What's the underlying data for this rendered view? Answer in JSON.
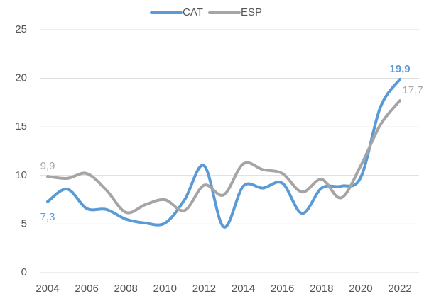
{
  "chart_data": {
    "type": "line",
    "x": [
      2004,
      2005,
      2006,
      2007,
      2008,
      2009,
      2010,
      2011,
      2012,
      2013,
      2014,
      2015,
      2016,
      2017,
      2018,
      2019,
      2020,
      2021,
      2022
    ],
    "xlim": [
      2004,
      2022
    ],
    "xticks": [
      2004,
      2006,
      2008,
      2010,
      2012,
      2014,
      2016,
      2018,
      2020,
      2022
    ],
    "ylim": [
      0,
      25
    ],
    "yticks": [
      0,
      5,
      10,
      15,
      20,
      25
    ],
    "grid": true,
    "legend": "top",
    "series": [
      {
        "name": "CAT",
        "color": "#5b9bd5",
        "values": [
          7.3,
          8.6,
          6.6,
          6.5,
          5.5,
          5.1,
          5.1,
          7.5,
          11.0,
          4.7,
          8.9,
          8.7,
          9.2,
          6.1,
          8.7,
          8.9,
          9.8,
          17.0,
          19.9
        ],
        "value_labels": [
          "7,3",
          null,
          null,
          null,
          null,
          null,
          null,
          null,
          null,
          null,
          null,
          null,
          null,
          null,
          null,
          null,
          null,
          null,
          "19,9"
        ]
      },
      {
        "name": "ESP",
        "color": "#a5a5a5",
        "values": [
          9.9,
          9.7,
          10.2,
          8.5,
          6.2,
          7.0,
          7.5,
          6.4,
          9.0,
          8.0,
          11.2,
          10.6,
          10.2,
          8.3,
          9.6,
          7.7,
          11.0,
          15.2,
          17.7
        ],
        "value_labels": [
          "9,9",
          null,
          null,
          null,
          null,
          null,
          null,
          null,
          null,
          null,
          null,
          null,
          null,
          null,
          null,
          null,
          null,
          null,
          "17,7"
        ]
      }
    ]
  }
}
